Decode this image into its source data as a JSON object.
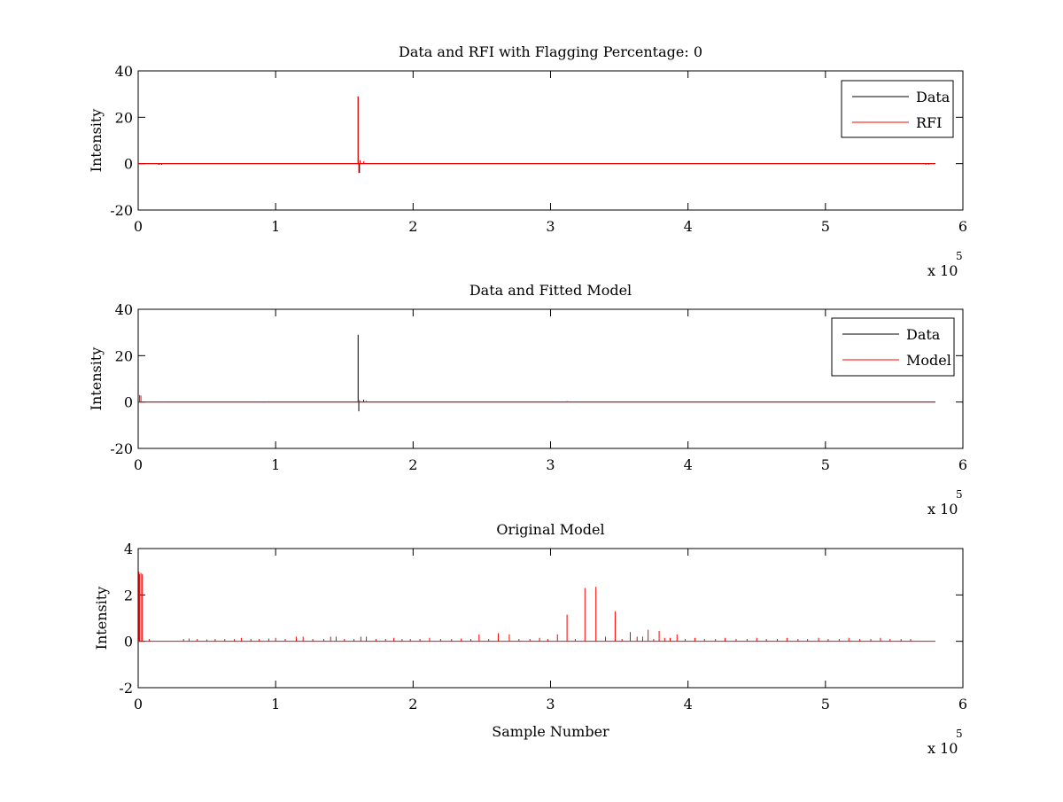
{
  "figure": {
    "background": "#ffffff"
  },
  "chart_data": [
    {
      "type": "line",
      "title": "Data and RFI with Flagging Percentage: 0",
      "xlabel": "",
      "ylabel": "Intensity",
      "xlim": [
        0,
        6
      ],
      "ylim": [
        -20,
        40
      ],
      "xticks": [
        0,
        1,
        2,
        3,
        4,
        5,
        6
      ],
      "yticks": [
        -20,
        0,
        20,
        40
      ],
      "x_exponent": {
        "base": "x 10",
        "power": "5"
      },
      "x_extent": [
        0,
        5.8
      ],
      "legend": {
        "position": "top-right",
        "entries": [
          "Data",
          "RFI"
        ]
      },
      "series": [
        {
          "name": "Data",
          "color": "#000000",
          "baseline": 0,
          "spikes": [
            {
              "x": 0.15,
              "y": -0.5
            },
            {
              "x": 0.17,
              "y": -0.5
            },
            {
              "x": 1.6,
              "y": 29
            },
            {
              "x": 1.61,
              "y": -4
            },
            {
              "x": 5.73,
              "y": -0.4
            },
            {
              "x": 5.75,
              "y": -0.4
            }
          ]
        },
        {
          "name": "RFI",
          "color": "#ff0000",
          "baseline": 0,
          "spikes": [
            {
              "x": 0.95,
              "y": 0.2
            },
            {
              "x": 1.6,
              "y": 29
            },
            {
              "x": 1.605,
              "y": -4
            },
            {
              "x": 1.615,
              "y": 1.5
            },
            {
              "x": 1.64,
              "y": 1.0
            }
          ]
        }
      ]
    },
    {
      "type": "line",
      "title": "Data and Fitted Model",
      "xlabel": "",
      "ylabel": "Intensity",
      "xlim": [
        0,
        6
      ],
      "ylim": [
        -20,
        40
      ],
      "xticks": [
        0,
        1,
        2,
        3,
        4,
        5,
        6
      ],
      "yticks": [
        -20,
        0,
        20,
        40
      ],
      "x_exponent": {
        "base": "x 10",
        "power": "5"
      },
      "x_extent": [
        0,
        5.8
      ],
      "legend": {
        "position": "top-right",
        "entries": [
          "Data",
          "Model"
        ]
      },
      "series": [
        {
          "name": "Data",
          "color": "#000000",
          "baseline": 0,
          "spikes": [
            {
              "x": 1.6,
              "y": 29
            },
            {
              "x": 1.605,
              "y": -4
            },
            {
              "x": 1.64,
              "y": 1.0
            }
          ]
        },
        {
          "name": "Model",
          "color": "#ff0000",
          "baseline": 0,
          "spikes": [
            {
              "x": 0.01,
              "y": 3
            },
            {
              "x": 0.02,
              "y": 2.8
            },
            {
              "x": 0.22,
              "y": 0.3
            },
            {
              "x": 0.95,
              "y": 0.3
            },
            {
              "x": 1.61,
              "y": 0.8
            },
            {
              "x": 1.66,
              "y": 0.5
            },
            {
              "x": 3.12,
              "y": 0.4
            },
            {
              "x": 5.78,
              "y": 0.3
            }
          ]
        }
      ]
    },
    {
      "type": "line",
      "title": "Original Model",
      "xlabel": "Sample Number",
      "ylabel": "Intensity",
      "xlim": [
        0,
        6
      ],
      "ylim": [
        -2,
        4
      ],
      "xticks": [
        0,
        1,
        2,
        3,
        4,
        5,
        6
      ],
      "yticks": [
        -2,
        0,
        2,
        4
      ],
      "x_exponent": {
        "base": "x 10",
        "power": "5"
      },
      "x_extent": [
        0,
        5.8
      ],
      "legend": null,
      "series": [
        {
          "color": "#ff0000",
          "baseline": 0,
          "spikes": [
            {
              "x": 0.005,
              "y": 3.0
            },
            {
              "x": 0.01,
              "y": 2.9
            },
            {
              "x": 0.02,
              "y": 2.95
            },
            {
              "x": 0.03,
              "y": 2.9
            },
            {
              "x": 0.08,
              "y": 0.1
            },
            {
              "x": 0.33,
              "y": 0.1
            },
            {
              "x": 0.37,
              "y": 0.12
            },
            {
              "x": 0.43,
              "y": 0.1
            },
            {
              "x": 0.5,
              "y": 0.08
            },
            {
              "x": 0.56,
              "y": 0.1
            },
            {
              "x": 0.63,
              "y": 0.1
            },
            {
              "x": 0.7,
              "y": 0.1
            },
            {
              "x": 0.75,
              "y": 0.15
            },
            {
              "x": 0.82,
              "y": 0.1
            },
            {
              "x": 0.88,
              "y": 0.1
            },
            {
              "x": 0.95,
              "y": 0.12
            },
            {
              "x": 1.0,
              "y": 0.15
            },
            {
              "x": 1.07,
              "y": 0.1
            },
            {
              "x": 1.15,
              "y": 0.2
            },
            {
              "x": 1.2,
              "y": 0.2
            },
            {
              "x": 1.27,
              "y": 0.1
            },
            {
              "x": 1.35,
              "y": 0.1
            },
            {
              "x": 1.4,
              "y": 0.2
            },
            {
              "x": 1.44,
              "y": 0.2
            },
            {
              "x": 1.5,
              "y": 0.1
            },
            {
              "x": 1.57,
              "y": 0.1
            },
            {
              "x": 1.62,
              "y": 0.2
            },
            {
              "x": 1.66,
              "y": 0.2
            },
            {
              "x": 1.73,
              "y": 0.1
            },
            {
              "x": 1.8,
              "y": 0.1
            },
            {
              "x": 1.86,
              "y": 0.15
            },
            {
              "x": 1.92,
              "y": 0.1
            },
            {
              "x": 1.98,
              "y": 0.1
            },
            {
              "x": 2.05,
              "y": 0.1
            },
            {
              "x": 2.12,
              "y": 0.15
            },
            {
              "x": 2.2,
              "y": 0.1
            },
            {
              "x": 2.28,
              "y": 0.1
            },
            {
              "x": 2.35,
              "y": 0.12
            },
            {
              "x": 2.42,
              "y": 0.1
            },
            {
              "x": 2.48,
              "y": 0.3
            },
            {
              "x": 2.55,
              "y": 0.1
            },
            {
              "x": 2.62,
              "y": 0.35
            },
            {
              "x": 2.7,
              "y": 0.3
            },
            {
              "x": 2.77,
              "y": 0.1
            },
            {
              "x": 2.85,
              "y": 0.1
            },
            {
              "x": 2.92,
              "y": 0.15
            },
            {
              "x": 2.98,
              "y": 0.1
            },
            {
              "x": 3.05,
              "y": 0.3
            },
            {
              "x": 3.12,
              "y": 1.15
            },
            {
              "x": 3.18,
              "y": 0.1
            },
            {
              "x": 3.25,
              "y": 2.3
            },
            {
              "x": 3.33,
              "y": 2.35
            },
            {
              "x": 3.4,
              "y": 0.2
            },
            {
              "x": 3.47,
              "y": 1.3
            },
            {
              "x": 3.52,
              "y": 0.1
            },
            {
              "x": 3.58,
              "y": 0.4
            },
            {
              "x": 3.63,
              "y": 0.2
            },
            {
              "x": 3.67,
              "y": 0.2
            },
            {
              "x": 3.71,
              "y": 0.5
            },
            {
              "x": 3.75,
              "y": 0.1
            },
            {
              "x": 3.79,
              "y": 0.45
            },
            {
              "x": 3.83,
              "y": 0.15
            },
            {
              "x": 3.87,
              "y": 0.15
            },
            {
              "x": 3.92,
              "y": 0.3
            },
            {
              "x": 3.98,
              "y": 0.1
            },
            {
              "x": 4.05,
              "y": 0.15
            },
            {
              "x": 4.12,
              "y": 0.1
            },
            {
              "x": 4.2,
              "y": 0.1
            },
            {
              "x": 4.27,
              "y": 0.15
            },
            {
              "x": 4.35,
              "y": 0.1
            },
            {
              "x": 4.43,
              "y": 0.1
            },
            {
              "x": 4.5,
              "y": 0.15
            },
            {
              "x": 4.57,
              "y": 0.1
            },
            {
              "x": 4.65,
              "y": 0.1
            },
            {
              "x": 4.72,
              "y": 0.15
            },
            {
              "x": 4.8,
              "y": 0.1
            },
            {
              "x": 4.87,
              "y": 0.1
            },
            {
              "x": 4.95,
              "y": 0.15
            },
            {
              "x": 5.02,
              "y": 0.1
            },
            {
              "x": 5.1,
              "y": 0.1
            },
            {
              "x": 5.17,
              "y": 0.15
            },
            {
              "x": 5.25,
              "y": 0.1
            },
            {
              "x": 5.33,
              "y": 0.1
            },
            {
              "x": 5.4,
              "y": 0.15
            },
            {
              "x": 5.47,
              "y": 0.1
            },
            {
              "x": 5.55,
              "y": 0.1
            },
            {
              "x": 5.62,
              "y": 0.1
            }
          ]
        }
      ]
    }
  ]
}
